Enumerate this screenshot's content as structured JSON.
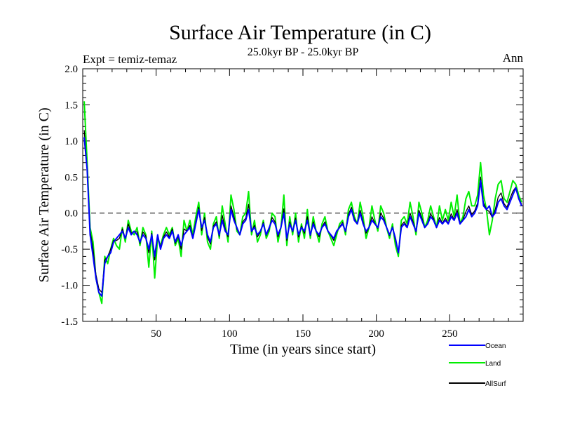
{
  "chart_data": {
    "type": "line",
    "title": "Surface Air Temperature (in C)",
    "subtitle": "25.0kyr BP - 25.0kyr BP",
    "left_annotation": "Expt = temiz-temaz",
    "right_annotation": "Ann",
    "xlabel": "Time (in years since start)",
    "ylabel": "Surface Air Temperature (in C)",
    "xlim": [
      0,
      300
    ],
    "ylim": [
      -1.5,
      2.0
    ],
    "xticks": [
      50,
      100,
      150,
      200,
      250
    ],
    "yticks": [
      "-1.5",
      "-1.0",
      "-0.5",
      "0.0",
      "0.5",
      "1.0",
      "1.5",
      "2.0"
    ],
    "zero_line": true,
    "legend_position": "bottom-right",
    "x": [
      1,
      3,
      5,
      7,
      9,
      11,
      13,
      15,
      17,
      19,
      21,
      23,
      25,
      27,
      29,
      31,
      33,
      35,
      37,
      39,
      41,
      43,
      45,
      47,
      49,
      51,
      53,
      55,
      57,
      59,
      61,
      63,
      65,
      67,
      69,
      71,
      73,
      75,
      77,
      79,
      81,
      83,
      85,
      87,
      89,
      91,
      93,
      95,
      97,
      99,
      101,
      103,
      105,
      107,
      109,
      111,
      113,
      115,
      117,
      119,
      121,
      123,
      125,
      127,
      129,
      131,
      133,
      135,
      137,
      139,
      141,
      143,
      145,
      147,
      149,
      151,
      153,
      155,
      157,
      159,
      161,
      163,
      165,
      167,
      169,
      171,
      173,
      175,
      177,
      179,
      181,
      183,
      185,
      187,
      189,
      191,
      193,
      195,
      197,
      199,
      201,
      203,
      205,
      207,
      209,
      211,
      213,
      215,
      217,
      219,
      221,
      223,
      225,
      227,
      229,
      231,
      233,
      235,
      237,
      239,
      241,
      243,
      245,
      247,
      249,
      251,
      253,
      255,
      257,
      259,
      261,
      263,
      265,
      267,
      269,
      271,
      273,
      275,
      277,
      279,
      281,
      283,
      285,
      287,
      289,
      291,
      293,
      295,
      297,
      299
    ],
    "series": [
      {
        "name": "Ocean",
        "color": "#0000ff",
        "values": [
          1.05,
          0.6,
          -0.3,
          -0.6,
          -0.9,
          -1.1,
          -1.15,
          -0.7,
          -0.6,
          -0.55,
          -0.4,
          -0.35,
          -0.3,
          -0.25,
          -0.35,
          -0.2,
          -0.3,
          -0.25,
          -0.3,
          -0.4,
          -0.3,
          -0.35,
          -0.5,
          -0.3,
          -0.6,
          -0.3,
          -0.5,
          -0.35,
          -0.3,
          -0.35,
          -0.25,
          -0.4,
          -0.3,
          -0.45,
          -0.3,
          -0.25,
          -0.2,
          -0.35,
          -0.15,
          0.05,
          -0.2,
          -0.1,
          -0.3,
          -0.4,
          -0.2,
          -0.15,
          -0.3,
          -0.1,
          -0.25,
          -0.3,
          0.05,
          -0.1,
          -0.2,
          -0.3,
          -0.15,
          -0.1,
          0.05,
          -0.25,
          -0.2,
          -0.3,
          -0.25,
          -0.15,
          -0.3,
          -0.2,
          -0.1,
          -0.15,
          -0.3,
          -0.2,
          0.0,
          -0.35,
          -0.15,
          -0.25,
          -0.1,
          -0.3,
          -0.2,
          -0.25,
          -0.1,
          -0.3,
          -0.15,
          -0.25,
          -0.3,
          -0.2,
          -0.15,
          -0.25,
          -0.3,
          -0.35,
          -0.25,
          -0.2,
          -0.15,
          -0.25,
          -0.05,
          0.05,
          -0.1,
          -0.15,
          0.0,
          -0.15,
          -0.25,
          -0.2,
          -0.1,
          -0.15,
          -0.2,
          -0.05,
          -0.1,
          -0.2,
          -0.3,
          -0.2,
          -0.35,
          -0.55,
          -0.2,
          -0.15,
          -0.2,
          -0.05,
          -0.15,
          -0.25,
          0.0,
          -0.1,
          -0.2,
          -0.15,
          -0.05,
          -0.1,
          -0.2,
          -0.1,
          -0.15,
          -0.1,
          -0.15,
          -0.05,
          -0.1,
          0.0,
          -0.15,
          -0.1,
          -0.05,
          0.05,
          -0.05,
          0.0,
          0.1,
          0.45,
          0.1,
          0.05,
          0.1,
          -0.05,
          0.0,
          0.15,
          0.2,
          0.1,
          0.05,
          0.15,
          0.25,
          0.35,
          0.2,
          0.1
        ]
      },
      {
        "name": "Land",
        "color": "#00ee00",
        "values": [
          1.55,
          0.7,
          -0.2,
          -0.4,
          -0.9,
          -1.1,
          -1.25,
          -0.6,
          -0.7,
          -0.5,
          -0.35,
          -0.45,
          -0.5,
          -0.2,
          -0.4,
          -0.1,
          -0.25,
          -0.3,
          -0.2,
          -0.45,
          -0.2,
          -0.3,
          -0.75,
          -0.25,
          -0.9,
          -0.35,
          -0.45,
          -0.3,
          -0.2,
          -0.3,
          -0.2,
          -0.45,
          -0.35,
          -0.6,
          -0.1,
          -0.25,
          -0.1,
          -0.3,
          -0.05,
          0.15,
          -0.3,
          0.0,
          -0.4,
          -0.5,
          -0.15,
          -0.05,
          -0.35,
          0.1,
          -0.15,
          -0.4,
          0.25,
          0.05,
          -0.25,
          -0.3,
          -0.05,
          0.0,
          0.3,
          -0.3,
          -0.1,
          -0.4,
          -0.3,
          -0.1,
          -0.35,
          -0.25,
          0.0,
          -0.05,
          -0.4,
          -0.2,
          0.25,
          -0.45,
          -0.05,
          -0.3,
          0.0,
          -0.4,
          -0.15,
          -0.35,
          0.05,
          -0.35,
          -0.05,
          -0.25,
          -0.4,
          -0.15,
          -0.05,
          -0.25,
          -0.35,
          -0.45,
          -0.3,
          -0.15,
          -0.1,
          -0.3,
          0.05,
          0.15,
          -0.05,
          -0.15,
          0.15,
          -0.05,
          -0.35,
          -0.2,
          0.1,
          -0.1,
          -0.25,
          0.1,
          0.0,
          -0.2,
          -0.35,
          -0.15,
          -0.45,
          -0.6,
          -0.1,
          -0.05,
          -0.15,
          0.15,
          -0.05,
          -0.3,
          0.15,
          0.0,
          -0.2,
          -0.1,
          0.1,
          -0.05,
          -0.2,
          0.1,
          -0.1,
          0.05,
          -0.1,
          0.15,
          -0.05,
          0.25,
          -0.15,
          -0.05,
          0.2,
          0.3,
          0.1,
          0.1,
          0.25,
          0.7,
          0.25,
          0.05,
          -0.3,
          -0.1,
          0.2,
          0.4,
          0.45,
          0.2,
          0.15,
          0.3,
          0.45,
          0.4,
          0.25,
          0.15
        ]
      },
      {
        "name": "AllSurf",
        "color": "#000000",
        "values": [
          1.15,
          0.6,
          -0.25,
          -0.5,
          -0.85,
          -1.05,
          -1.1,
          -0.65,
          -0.6,
          -0.5,
          -0.38,
          -0.38,
          -0.35,
          -0.22,
          -0.35,
          -0.15,
          -0.28,
          -0.26,
          -0.26,
          -0.42,
          -0.26,
          -0.32,
          -0.55,
          -0.28,
          -0.65,
          -0.32,
          -0.47,
          -0.33,
          -0.26,
          -0.33,
          -0.22,
          -0.42,
          -0.32,
          -0.5,
          -0.22,
          -0.25,
          -0.17,
          -0.33,
          -0.12,
          0.08,
          -0.24,
          -0.06,
          -0.33,
          -0.43,
          -0.18,
          -0.12,
          -0.32,
          -0.03,
          -0.22,
          -0.33,
          0.1,
          -0.05,
          -0.22,
          -0.3,
          -0.12,
          -0.07,
          0.12,
          -0.26,
          -0.17,
          -0.33,
          -0.26,
          -0.13,
          -0.31,
          -0.22,
          -0.06,
          -0.12,
          -0.33,
          -0.2,
          0.06,
          -0.38,
          -0.12,
          -0.26,
          -0.07,
          -0.33,
          -0.18,
          -0.28,
          -0.05,
          -0.31,
          -0.12,
          -0.25,
          -0.33,
          -0.19,
          -0.12,
          -0.25,
          -0.31,
          -0.38,
          -0.26,
          -0.19,
          -0.13,
          -0.26,
          -0.02,
          0.08,
          -0.08,
          -0.15,
          0.04,
          -0.12,
          -0.28,
          -0.2,
          -0.05,
          -0.14,
          -0.21,
          0.0,
          -0.07,
          -0.2,
          -0.31,
          -0.19,
          -0.38,
          -0.55,
          -0.17,
          -0.12,
          -0.19,
          0.0,
          -0.12,
          -0.26,
          0.04,
          -0.07,
          -0.2,
          -0.14,
          -0.01,
          -0.08,
          -0.2,
          -0.06,
          -0.14,
          -0.07,
          -0.14,
          -0.01,
          -0.09,
          0.05,
          -0.14,
          -0.09,
          0.02,
          0.1,
          -0.02,
          0.03,
          0.14,
          0.5,
          0.14,
          0.05,
          0.02,
          -0.06,
          0.05,
          0.22,
          0.28,
          0.13,
          0.08,
          0.2,
          0.3,
          0.36,
          0.21,
          0.12
        ]
      }
    ]
  }
}
